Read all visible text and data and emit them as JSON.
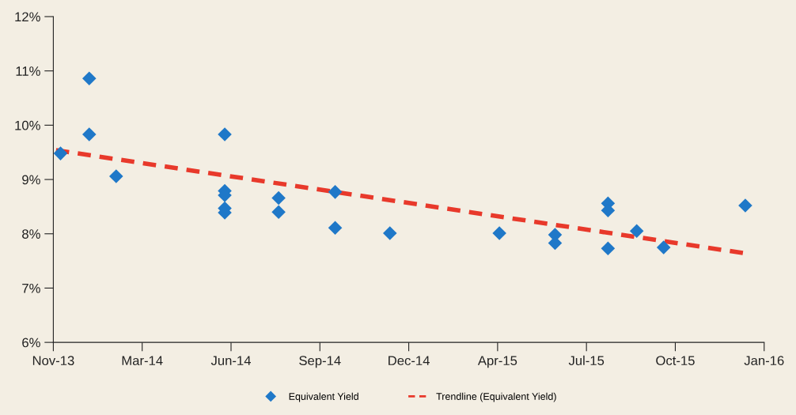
{
  "chart_data": {
    "type": "scatter",
    "series": [
      {
        "name": "Equivalent Yield",
        "color": "#1f78c8",
        "marker": "diamond",
        "x": [
          "2013-12-03",
          "2014-01-04",
          "2014-01-04",
          "2014-02-03",
          "2014-06-04",
          "2014-06-04",
          "2014-06-04",
          "2014-06-04",
          "2014-06-04",
          "2014-08-03",
          "2014-08-03",
          "2014-10-05",
          "2014-10-05",
          "2014-12-05",
          "2015-04-06",
          "2015-06-07",
          "2015-06-07",
          "2015-08-05",
          "2015-08-05",
          "2015-08-05",
          "2015-09-06",
          "2015-10-06",
          "2016-01-05"
        ],
        "values": [
          9.48,
          10.86,
          9.83,
          9.06,
          9.83,
          8.79,
          8.71,
          8.47,
          8.39,
          8.66,
          8.4,
          8.77,
          8.11,
          8.01,
          8.01,
          7.98,
          7.83,
          8.56,
          8.43,
          7.73,
          8.05,
          7.75,
          8.52
        ]
      },
      {
        "name": "Trendline (Equivalent Yield)",
        "type": "line",
        "color": "#e8392b",
        "line_style": "dashed",
        "marker": "none",
        "x": [
          "2013-11-28",
          "2016-01-05"
        ],
        "values": [
          9.54,
          7.64
        ]
      }
    ],
    "xlim": [
      "2013-11-25",
      "2016-01-26"
    ],
    "xticks": [
      {
        "value": "2013-11-25",
        "label": "Nov-13"
      },
      {
        "value": "2014-03-04",
        "label": "Mar-14"
      },
      {
        "value": "2014-06-11",
        "label": "Jun-14"
      },
      {
        "value": "2014-09-18",
        "label": "Sep-14"
      },
      {
        "value": "2014-12-26",
        "label": "Dec-14"
      },
      {
        "value": "2015-04-04",
        "label": "Apr-15"
      },
      {
        "value": "2015-07-12",
        "label": "Jul-15"
      },
      {
        "value": "2015-10-19",
        "label": "Oct-15"
      },
      {
        "value": "2016-01-26",
        "label": "Jan-16"
      }
    ],
    "ylim": [
      6,
      12
    ],
    "yticks": [
      {
        "value": 6,
        "label": "6%"
      },
      {
        "value": 7,
        "label": "7%"
      },
      {
        "value": 8,
        "label": "8%"
      },
      {
        "value": 9,
        "label": "9%"
      },
      {
        "value": 10,
        "label": "10%"
      },
      {
        "value": 11,
        "label": "11%"
      },
      {
        "value": 12,
        "label": "12%"
      }
    ],
    "grid": false,
    "legend": "bottom"
  }
}
